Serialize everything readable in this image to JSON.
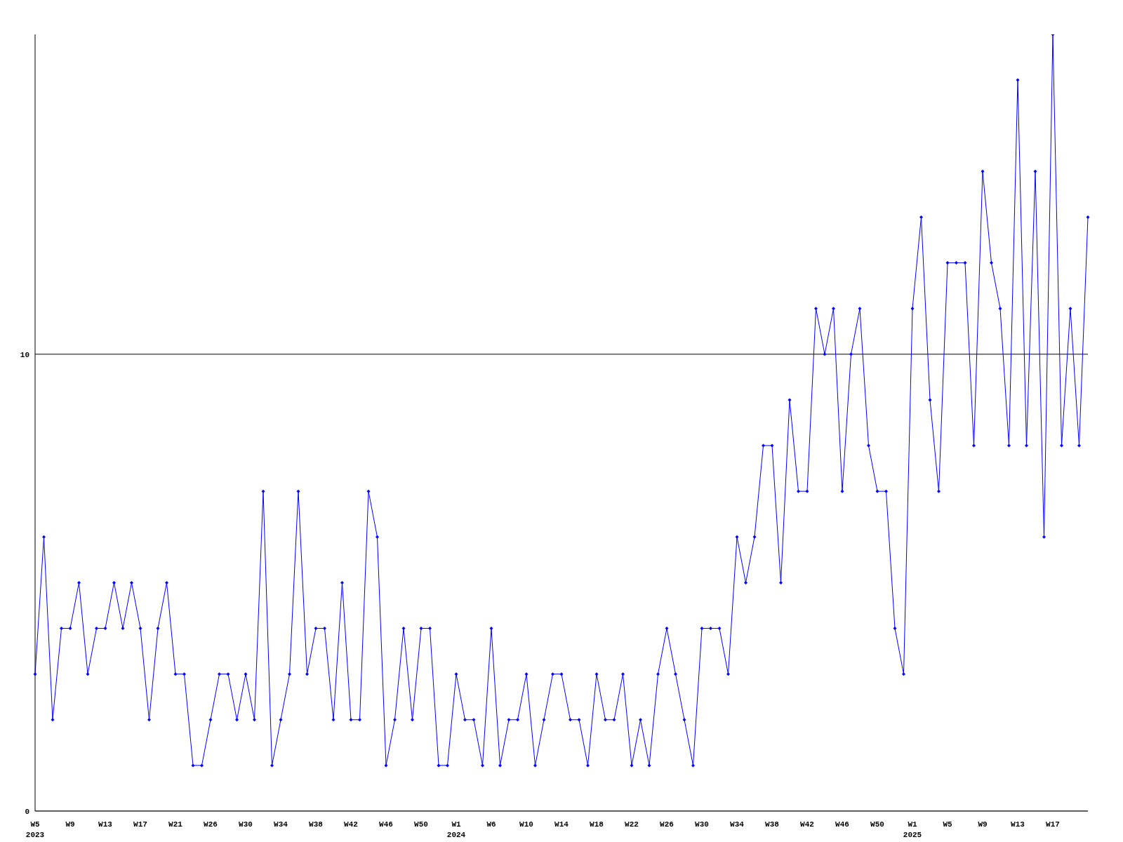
{
  "chart_data": {
    "type": "line",
    "categories": [
      "W5\n2023",
      null,
      null,
      null,
      "W9",
      null,
      null,
      null,
      "W13",
      null,
      null,
      null,
      "W17",
      null,
      null,
      null,
      "W21",
      null,
      null,
      null,
      "W26",
      null,
      null,
      null,
      "W30",
      null,
      null,
      null,
      "W34",
      null,
      null,
      null,
      "W38",
      null,
      null,
      null,
      "W42",
      null,
      null,
      null,
      "W46",
      null,
      null,
      null,
      "W50",
      null,
      null,
      null,
      "W1\n2024",
      null,
      null,
      null,
      "W6",
      null,
      null,
      null,
      "W10",
      null,
      null,
      null,
      "W14",
      null,
      null,
      null,
      "W18",
      null,
      null,
      null,
      "W22",
      null,
      null,
      null,
      "W26",
      null,
      null,
      null,
      "W30",
      null,
      null,
      null,
      "W34",
      null,
      null,
      null,
      "W38",
      null,
      null,
      null,
      "W42",
      null,
      null,
      null,
      "W46",
      null,
      null,
      null,
      "W50",
      null,
      null,
      null,
      "W1\n2025",
      null,
      null,
      null,
      "W5",
      null,
      null,
      null,
      "W9",
      null,
      null,
      null,
      "W13",
      null,
      null,
      null,
      "W17",
      null,
      null,
      null,
      null
    ],
    "series": [
      {
        "color": "#0000ff",
        "values": [
          3,
          6,
          2,
          4,
          4,
          5,
          3,
          4,
          4,
          5,
          4,
          5,
          4,
          2,
          4,
          5,
          3,
          3,
          1,
          1,
          2,
          3,
          3,
          2,
          3,
          2,
          7,
          1,
          2,
          3,
          7,
          3,
          4,
          4,
          2,
          5,
          2,
          2,
          7,
          6,
          1,
          2,
          4,
          2,
          4,
          4,
          1,
          1,
          3,
          2,
          2,
          1,
          4,
          1,
          2,
          2,
          3,
          1,
          2,
          3,
          3,
          2,
          2,
          1,
          3,
          2,
          2,
          3,
          1,
          2,
          1,
          3,
          4,
          3,
          2,
          1,
          4,
          4,
          4,
          3,
          6,
          5,
          6,
          8,
          8,
          5,
          9,
          7,
          7,
          11,
          10,
          11,
          7,
          10,
          11,
          8,
          7,
          7,
          4,
          3,
          11,
          13,
          9,
          7,
          12,
          12,
          12,
          8,
          14,
          12,
          11,
          8,
          16,
          8,
          14,
          6,
          17,
          8,
          11,
          8,
          13
        ]
      }
    ],
    "ylim": [
      0,
      17
    ],
    "yticks": [
      0,
      10
    ],
    "grid": "y",
    "marker": "diamond",
    "line_style": "solid"
  }
}
